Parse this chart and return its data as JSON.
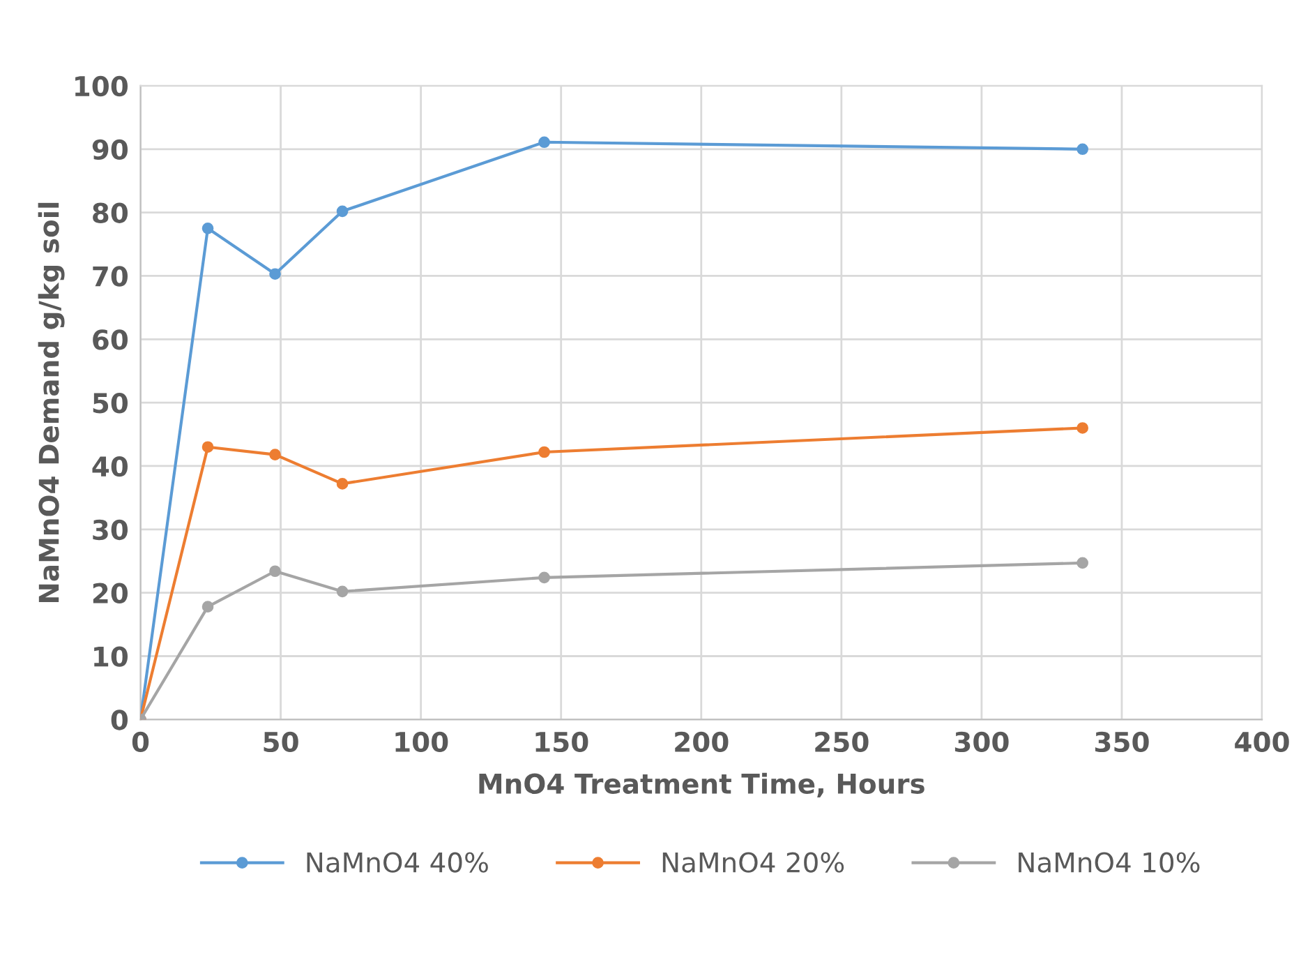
{
  "chart_data": {
    "type": "line",
    "xlabel": "MnO4 Treatment Time, Hours",
    "ylabel": "NaMnO4 Demand g/kg soil",
    "x": [
      0,
      24,
      48,
      72,
      144,
      336
    ],
    "series": [
      {
        "name": "NaMnO4 40%",
        "color": "#5b9bd5",
        "values": [
          0,
          77.5,
          70.3,
          80.2,
          91.1,
          90.0
        ]
      },
      {
        "name": "NaMnO4 20%",
        "color": "#ed7d31",
        "values": [
          0,
          43.0,
          41.8,
          37.2,
          42.2,
          46.0
        ]
      },
      {
        "name": "NaMnO4 10%",
        "color": "#a5a5a5",
        "values": [
          0,
          17.8,
          23.4,
          20.2,
          22.4,
          24.7
        ]
      }
    ],
    "xlim": [
      0,
      400
    ],
    "xticks": [
      0,
      50,
      100,
      150,
      200,
      250,
      300,
      350,
      400
    ],
    "ylim": [
      0,
      100
    ],
    "yticks": [
      0,
      10,
      20,
      30,
      40,
      50,
      60,
      70,
      80,
      90,
      100
    ],
    "grid": true,
    "legend": "bottom",
    "marker": "circle",
    "line_style": "solid"
  }
}
